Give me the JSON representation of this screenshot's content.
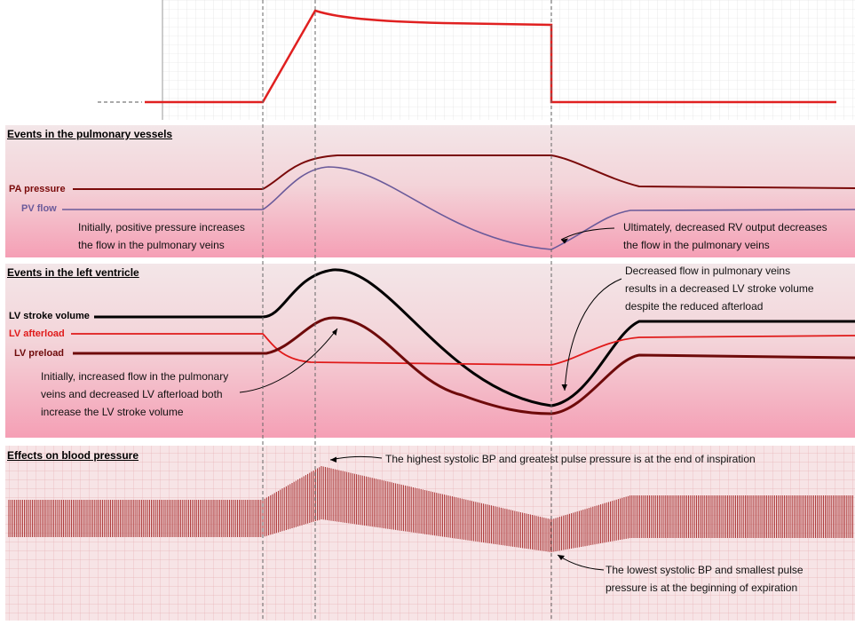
{
  "colors": {
    "mechanical": "#e02020",
    "pa_pressure": "#7a0a0a",
    "pv_flow": "#6a5a9a",
    "lv_stroke_volume": "#000000",
    "lv_afterload": "#e01a1a",
    "lv_preload": "#6e0a0a",
    "bp_bars": "#a52a2a",
    "panel_top": "#f2e2e4",
    "panel_bottom": "#f4a0b4",
    "grid": "#d6d6d6"
  },
  "panels": {
    "pulmonary": {
      "title": "Events in the pulmonary vessels",
      "labels": {
        "pa_pressure": "PA pressure",
        "pv_flow": "PV flow"
      },
      "annotations": {
        "initial": [
          "Initially, positive pressure increases",
          "the flow in the pulmonary veins"
        ],
        "ultimate": [
          "Ultimately, decreased RV output decreases",
          "the flow in the pulmonary veins"
        ]
      }
    },
    "left_ventricle": {
      "title": "Events in the left ventricle",
      "labels": {
        "stroke_volume": "LV stroke volume",
        "afterload": "LV afterload",
        "preload": "LV preload"
      },
      "annotations": {
        "initial": [
          "Initially, increased flow in the pulmonary",
          "veins and decreased LV afterload both",
          "increase the LV stroke volume"
        ],
        "later": [
          "Decreased flow in pulmonary veins",
          "results in a decreased LV stroke volume",
          "despite the reduced afterload"
        ]
      }
    },
    "blood_pressure": {
      "title": "Effects on blood pressure",
      "annotations": {
        "highest": "The highest systolic BP and greatest pulse pressure is at the end of inspiration",
        "lowest": [
          "The lowest systolic BP and smallest pulse",
          "pressure is at the beginning of expiration"
        ]
      }
    }
  }
}
